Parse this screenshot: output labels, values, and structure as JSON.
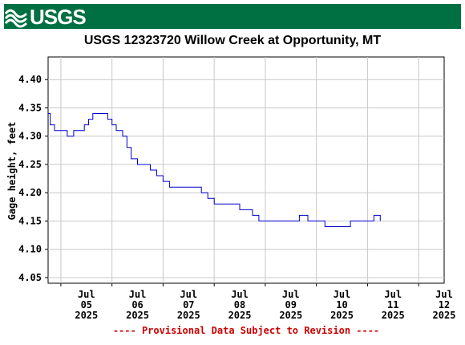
{
  "logo": {
    "text": "USGS"
  },
  "chart_data": {
    "type": "line",
    "title": "USGS 12323720 Willow Creek at Opportunity, MT",
    "ylabel": "Gage height, feet",
    "xlabel": "",
    "ylim": [
      4.04,
      4.44
    ],
    "yticks": [
      4.05,
      4.1,
      4.15,
      4.2,
      4.25,
      4.3,
      4.35,
      4.4
    ],
    "xticks": [
      {
        "month": "Jul",
        "day": "05",
        "year": "2025"
      },
      {
        "month": "Jul",
        "day": "06",
        "year": "2025"
      },
      {
        "month": "Jul",
        "day": "07",
        "year": "2025"
      },
      {
        "month": "Jul",
        "day": "08",
        "year": "2025"
      },
      {
        "month": "Jul",
        "day": "09",
        "year": "2025"
      },
      {
        "month": "Jul",
        "day": "10",
        "year": "2025"
      },
      {
        "month": "Jul",
        "day": "11",
        "year": "2025"
      },
      {
        "month": "Jul",
        "day": "12",
        "year": "2025"
      }
    ],
    "xlim": [
      "2025-07-04 18:00",
      "2025-07-12 12:00"
    ],
    "grid": true,
    "line_color": "#0000cc",
    "footnote": "---- Provisional Data Subject to Revision ----",
    "footnote_color": "#cc0000",
    "series": [
      {
        "x": [
          "2025-07-04 18:00",
          "2025-07-04 19:00",
          "2025-07-04 21:00",
          "2025-07-05 00:00",
          "2025-07-05 03:00",
          "2025-07-05 06:00",
          "2025-07-05 09:00",
          "2025-07-05 11:00",
          "2025-07-05 13:00",
          "2025-07-05 15:00",
          "2025-07-05 18:00",
          "2025-07-05 20:00",
          "2025-07-05 22:00",
          "2025-07-06 00:00",
          "2025-07-06 02:00",
          "2025-07-06 05:00",
          "2025-07-06 07:00",
          "2025-07-06 09:00",
          "2025-07-06 12:00",
          "2025-07-06 15:00",
          "2025-07-06 18:00",
          "2025-07-06 21:00",
          "2025-07-07 00:00",
          "2025-07-07 03:00",
          "2025-07-07 06:00",
          "2025-07-07 09:00",
          "2025-07-07 12:00",
          "2025-07-07 15:00",
          "2025-07-07 18:00",
          "2025-07-07 21:00",
          "2025-07-08 00:00",
          "2025-07-08 03:00",
          "2025-07-08 06:00",
          "2025-07-08 09:00",
          "2025-07-08 12:00",
          "2025-07-08 15:00",
          "2025-07-08 18:00",
          "2025-07-08 21:00",
          "2025-07-09 00:00",
          "2025-07-09 02:00",
          "2025-07-09 05:00",
          "2025-07-09 08:00",
          "2025-07-09 12:00",
          "2025-07-09 16:00",
          "2025-07-09 20:00",
          "2025-07-10 00:00",
          "2025-07-10 04:00",
          "2025-07-10 08:00",
          "2025-07-10 12:00",
          "2025-07-10 16:00",
          "2025-07-10 20:00",
          "2025-07-11 00:00",
          "2025-07-11 03:00",
          "2025-07-11 06:00"
        ],
        "y": [
          4.34,
          4.32,
          4.31,
          4.31,
          4.3,
          4.31,
          4.31,
          4.32,
          4.33,
          4.34,
          4.34,
          4.34,
          4.33,
          4.32,
          4.31,
          4.3,
          4.28,
          4.26,
          4.25,
          4.25,
          4.24,
          4.23,
          4.22,
          4.21,
          4.21,
          4.21,
          4.21,
          4.21,
          4.2,
          4.19,
          4.18,
          4.18,
          4.18,
          4.18,
          4.17,
          4.17,
          4.16,
          4.15,
          4.15,
          4.15,
          4.15,
          4.15,
          4.15,
          4.16,
          4.15,
          4.15,
          4.14,
          4.14,
          4.14,
          4.15,
          4.15,
          4.15,
          4.16,
          4.15
        ]
      }
    ]
  }
}
